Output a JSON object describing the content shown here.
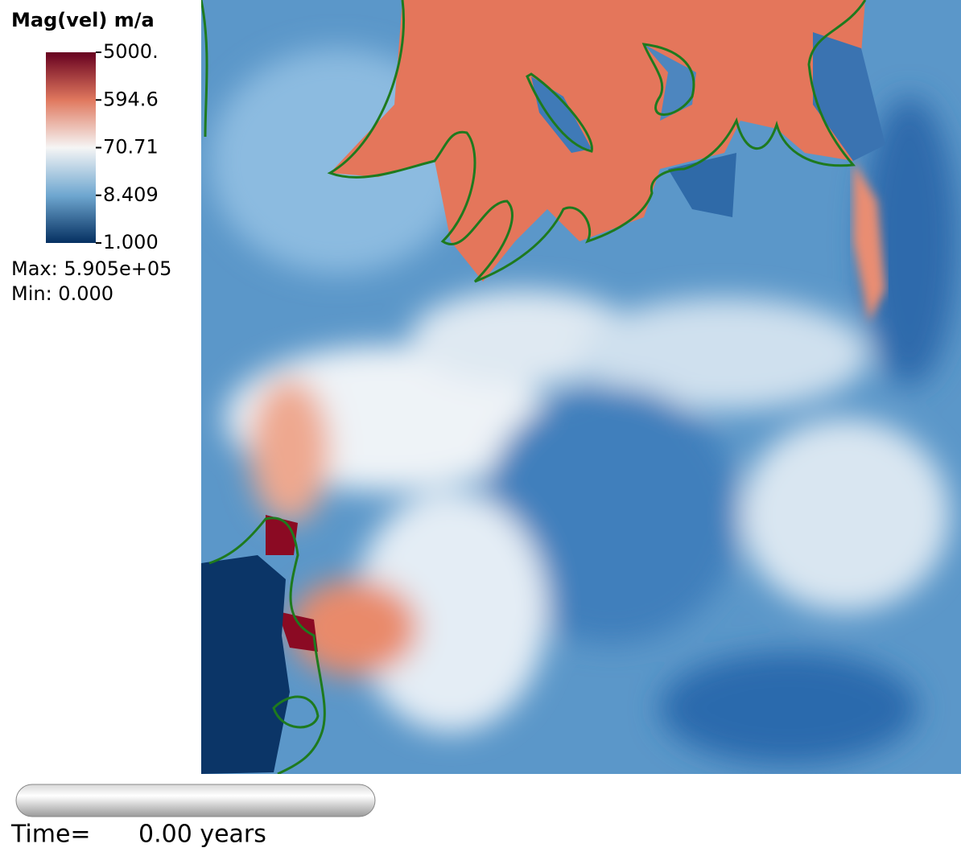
{
  "colorbar": {
    "title": "Mag(vel) m/a",
    "ticks": [
      "5000.",
      "594.6",
      "70.71",
      "8.409",
      "1.000"
    ]
  },
  "stats": {
    "max": "Max:  5.905e+05",
    "min": "Min:  0.000"
  },
  "time": {
    "label": "Time=",
    "value": "0.00 years"
  }
}
